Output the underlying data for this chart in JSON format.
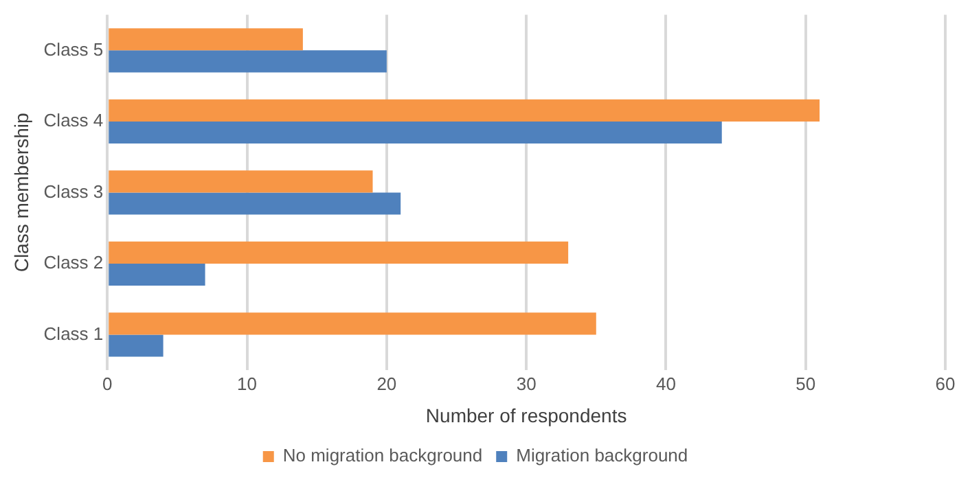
{
  "chart_data": {
    "type": "bar",
    "orientation": "horizontal",
    "xlabel": "Number of respondents",
    "ylabel": "Class membership",
    "categories": [
      "Class 5",
      "Class 4",
      "Class 3",
      "Class 2",
      "Class 1"
    ],
    "series": [
      {
        "name": "No migration background",
        "color": "#f79646",
        "values": [
          14,
          51,
          19,
          33,
          35
        ]
      },
      {
        "name": "Migration background",
        "color": "#4f81bd",
        "values": [
          20,
          44,
          21,
          7,
          4
        ]
      }
    ],
    "xlim": [
      0,
      60
    ],
    "xticks": [
      0,
      10,
      20,
      30,
      40,
      50,
      60
    ],
    "grid": "x",
    "legend": "bottom"
  }
}
